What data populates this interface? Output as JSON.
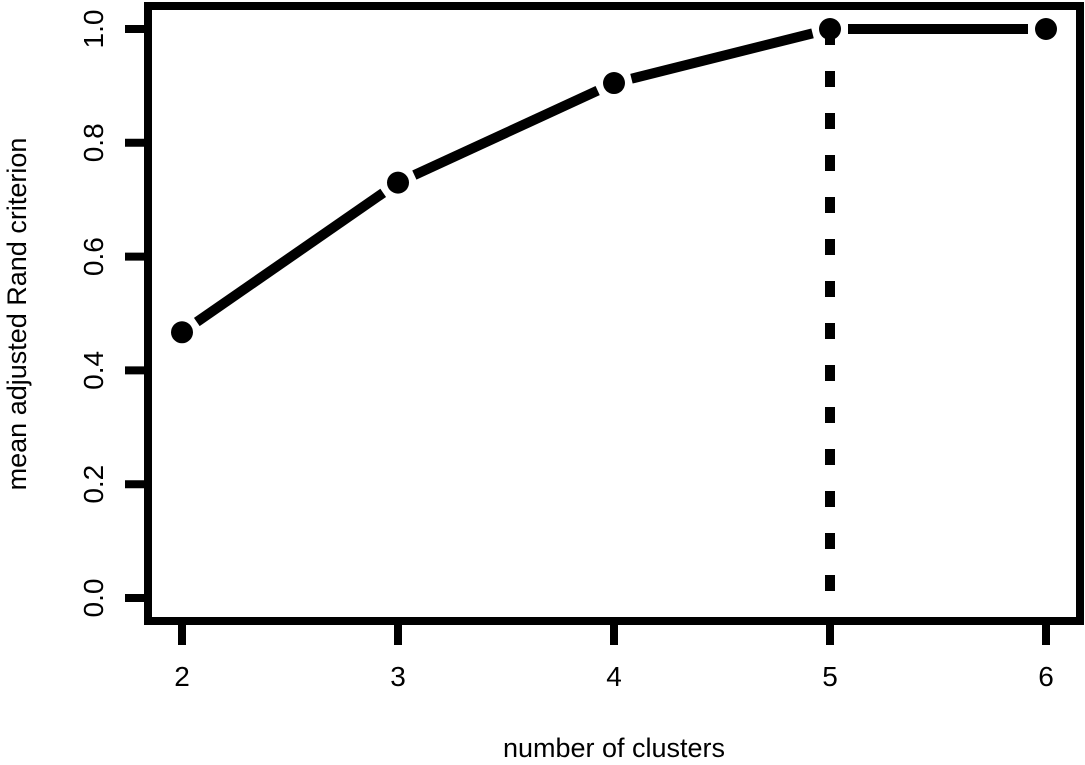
{
  "chart_data": {
    "type": "line",
    "title": "",
    "xlabel": "number of clusters",
    "ylabel": "mean adjusted Rand criterion",
    "x": [
      2,
      3,
      4,
      5,
      6
    ],
    "series": [
      {
        "values": [
          0.467,
          0.73,
          0.905,
          1.0,
          1.0
        ]
      }
    ],
    "xlim": [
      2,
      6
    ],
    "ylim": [
      0,
      1
    ],
    "x_ticks": [
      "2",
      "3",
      "4",
      "5",
      "6"
    ],
    "y_ticks": [
      "0.0",
      "0.2",
      "0.4",
      "0.6",
      "0.8",
      "1.0"
    ],
    "reference_line": {
      "orientation": "vertical",
      "x": 5,
      "style": "dotted"
    },
    "grid": false,
    "legend": "none",
    "colors": {
      "line": "#000000",
      "points": "#000000",
      "axes": "#000000",
      "background": "#ffffff"
    }
  }
}
